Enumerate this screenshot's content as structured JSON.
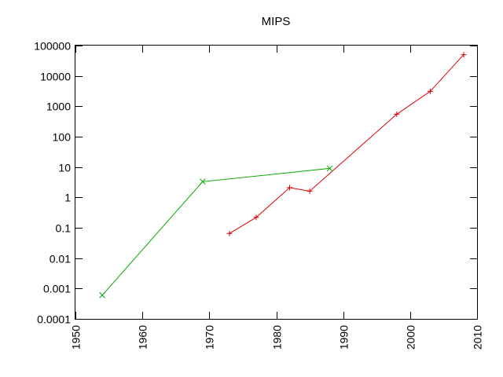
{
  "chart_data": {
    "type": "line",
    "title": "MIPS",
    "xlabel": "",
    "ylabel": "",
    "x_scale": "linear",
    "y_scale": "log",
    "xlim": [
      1950,
      2010
    ],
    "ylim": [
      0.0001,
      100000
    ],
    "x_ticks": [
      "1950",
      "1960",
      "1970",
      "1980",
      "1990",
      "2000",
      "2010"
    ],
    "y_ticks": [
      "0.0001",
      "0.001",
      "0.01",
      "0.1",
      "1",
      "10",
      "100",
      "1000",
      "10000",
      "100000"
    ],
    "grid": false,
    "legend": "none",
    "series": [
      {
        "color": "#dd0000",
        "marker": "plus",
        "x": [
          1973,
          1977,
          1982,
          1985,
          1998,
          2003,
          2008
        ],
        "y": [
          0.065,
          0.22,
          2.1,
          1.6,
          550,
          3100,
          50000
        ]
      },
      {
        "color": "#00aa00",
        "marker": "cross",
        "x": [
          1954,
          1969,
          1988
        ],
        "y": [
          0.0006,
          3.3,
          9
        ]
      }
    ]
  }
}
